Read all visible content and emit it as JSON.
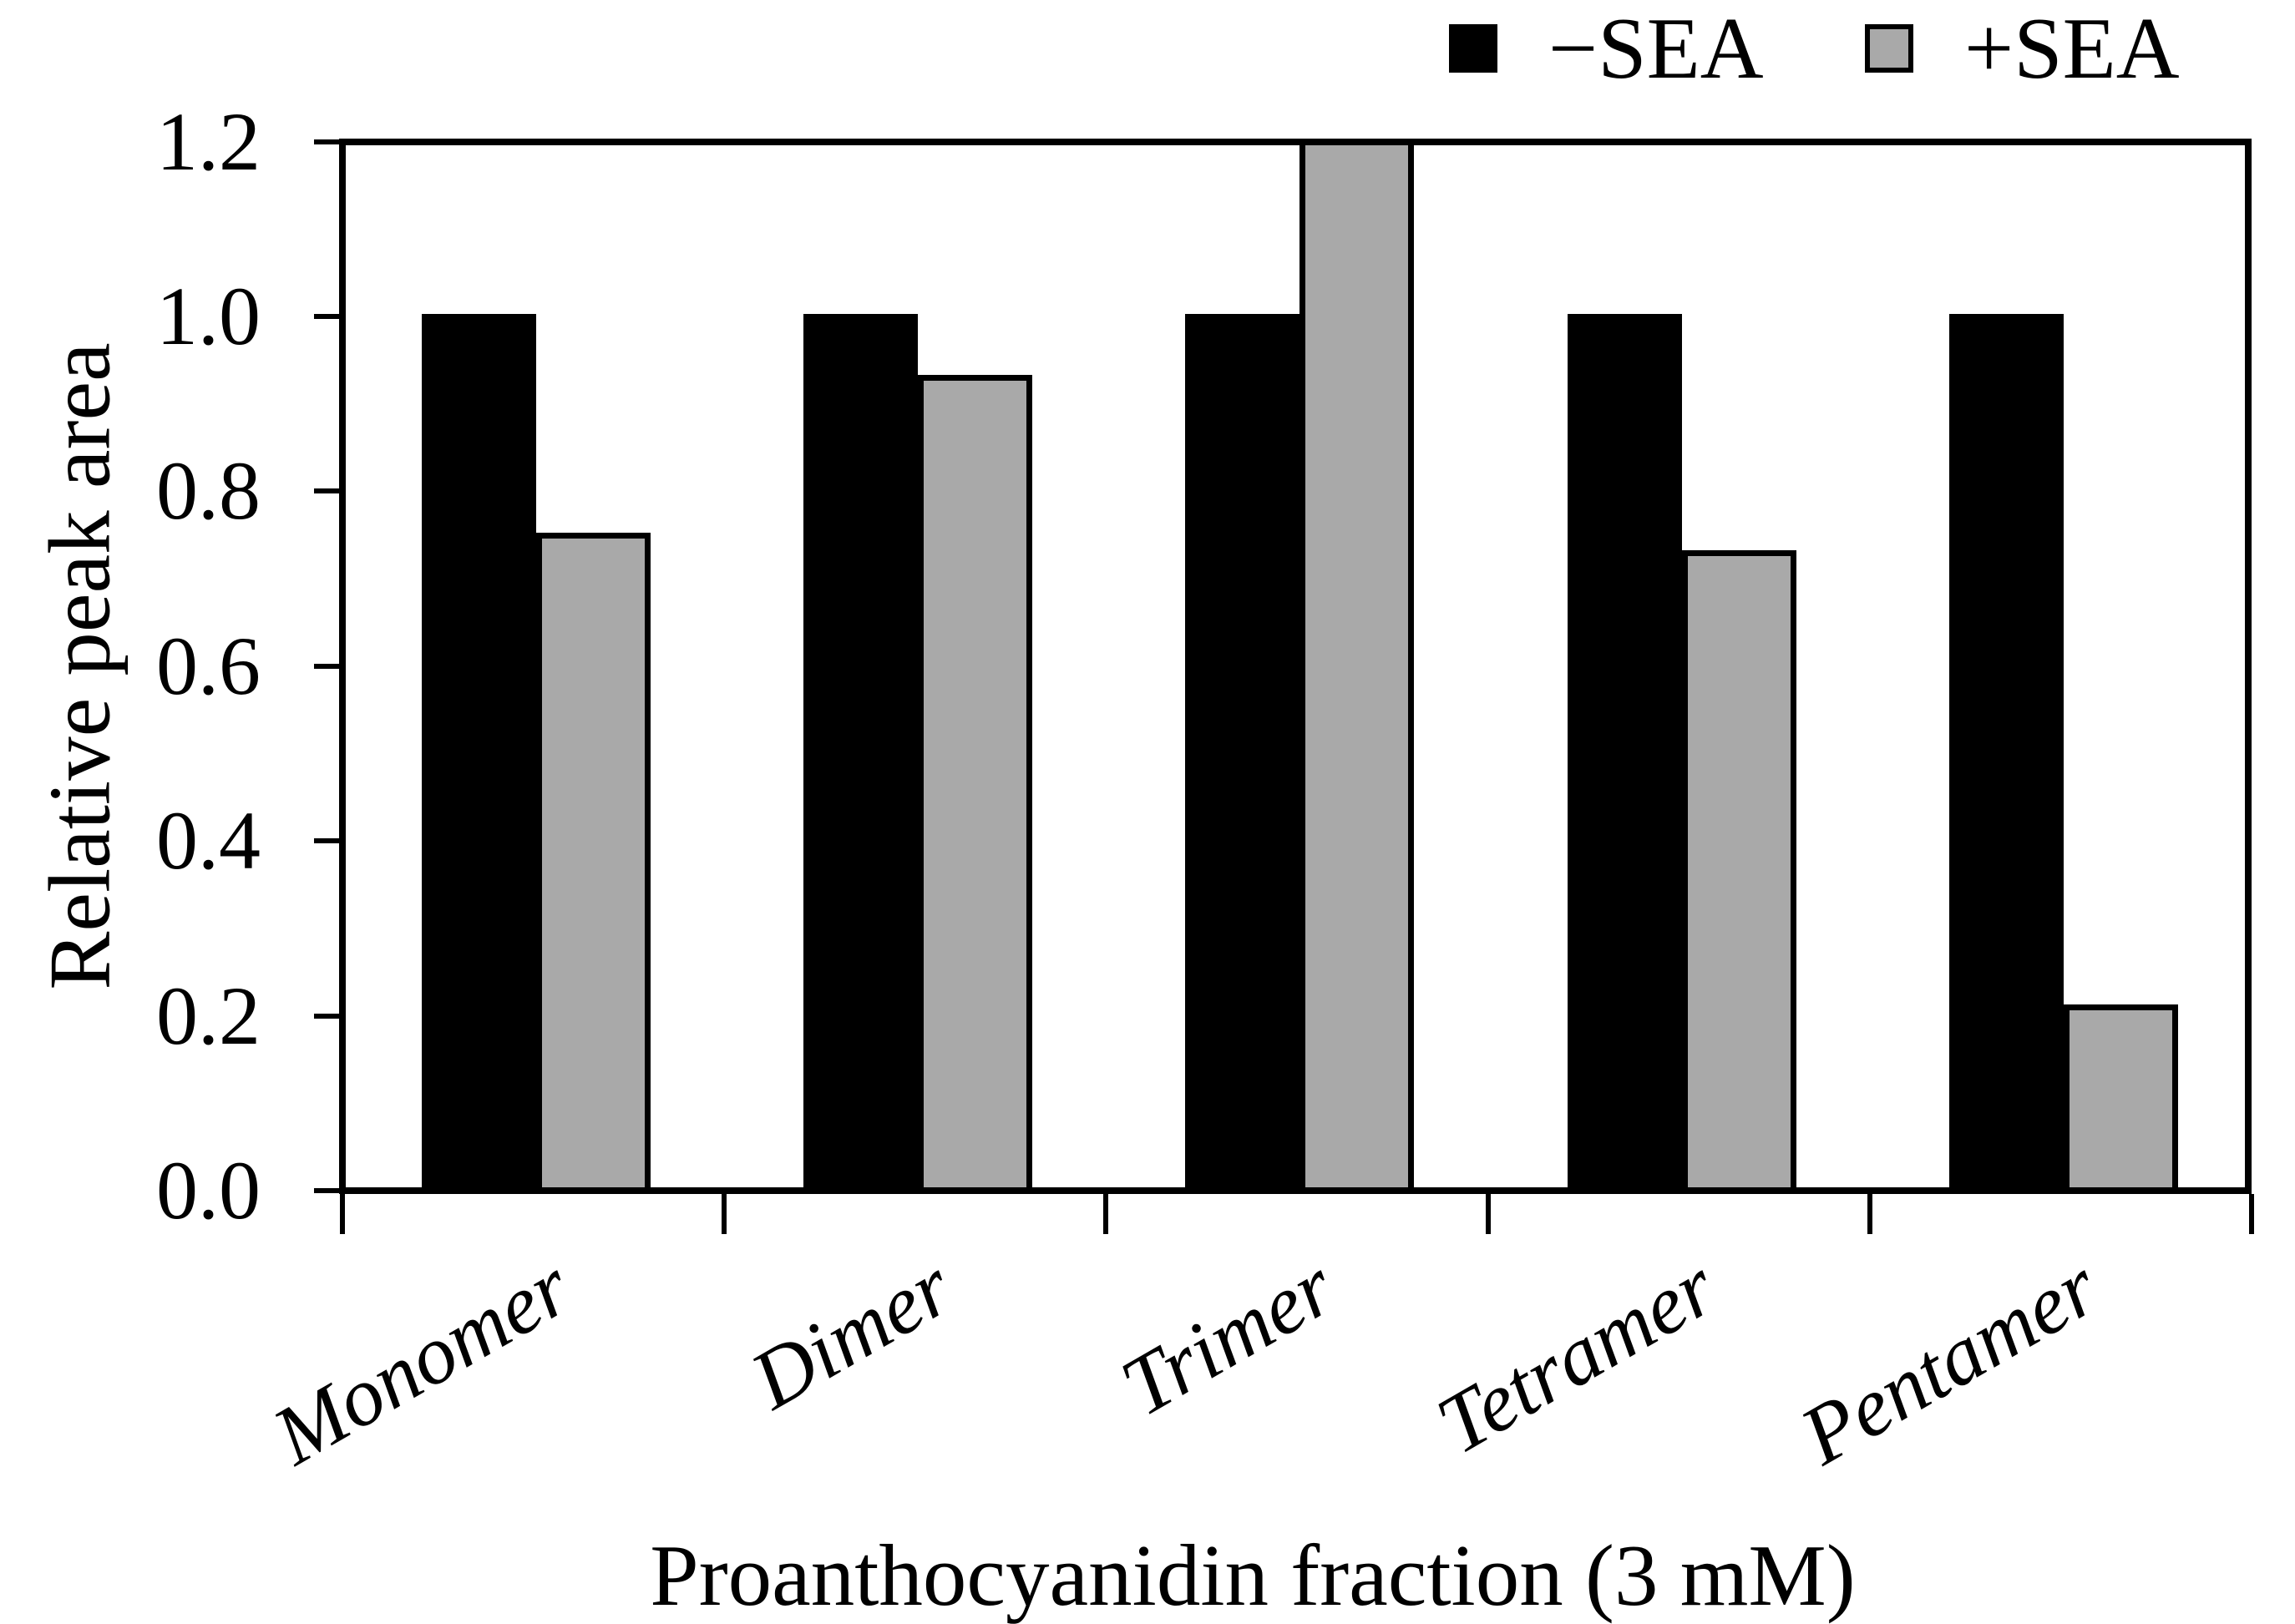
{
  "figure": {
    "legend": {
      "items": [
        {
          "label": "−SEA",
          "color": "#000000",
          "swatch": "black-square"
        },
        {
          "label": "+SEA",
          "color": "#A9A9A9",
          "swatch": "gray-square-black-outline"
        }
      ]
    },
    "y_axis": {
      "title": "Relative peak area",
      "tick_labels": [
        "0.0",
        "0.2",
        "0.4",
        "0.6",
        "0.8",
        "1.0",
        "1.2"
      ]
    },
    "x_axis": {
      "title": "Proanthocyanidin fraction (3 mM)",
      "categories": [
        "Monomer",
        "Dimer",
        "Trimer",
        "Tetramer",
        "Pentamer"
      ]
    }
  },
  "chart_data": {
    "type": "bar",
    "title": "",
    "categories": [
      "Monomer",
      "Dimer",
      "Trimer",
      "Tetramer",
      "Pentamer"
    ],
    "series": [
      {
        "name": "−SEA",
        "color": "#000000",
        "values": [
          1.0,
          1.0,
          1.0,
          1.0,
          1.0
        ]
      },
      {
        "name": "+SEA",
        "color": "#A9A9A9",
        "values": [
          0.75,
          0.93,
          1.2,
          0.73,
          0.21
        ]
      }
    ],
    "xlabel": "Proanthocyanidin fraction (3 mM)",
    "ylabel": "Relative peak area",
    "ylim": [
      0,
      1.2
    ],
    "yticks": [
      0.0,
      0.2,
      0.4,
      0.6,
      0.8,
      1.0,
      1.2
    ],
    "grid": false,
    "legend_position": "top-right",
    "bar_outline": {
      "plus_sea_border": "#000000"
    },
    "annotations": "+SEA Trimer bar reaches the top of the axis (clipped at 1.2)"
  }
}
